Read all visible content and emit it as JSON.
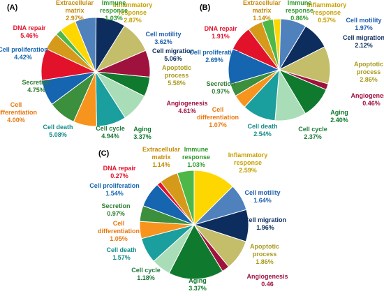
{
  "chart_data": [
    {
      "type": "pie",
      "panel_label": "(A)",
      "start_angle_deg": -40,
      "slices": [
        {
          "name": "Inflammatory response",
          "label_lines": [
            "Inflammatory",
            "response"
          ],
          "value": 2.87,
          "value_text": "2.87%",
          "color": "#FFD700",
          "label_color": "#C7A000"
        },
        {
          "name": "Cell motility",
          "label_lines": [
            "Cell motility"
          ],
          "value": 3.62,
          "value_text": "3.62%",
          "color": "#4F81BD",
          "label_color": "#1F5FAF"
        },
        {
          "name": "Cell migration",
          "label_lines": [
            "Cell migration"
          ],
          "value": 5.06,
          "value_text": "5.06%",
          "color": "#0D2D5E",
          "label_color": "#0D2D5E"
        },
        {
          "name": "Apoptotic process",
          "label_lines": [
            "Apoptotic",
            "process"
          ],
          "value": 5.58,
          "value_text": "5.58%",
          "color": "#C4BD6A",
          "label_color": "#A89A1E"
        },
        {
          "name": "Angiogenesis",
          "label_lines": [
            "Angiogenesis"
          ],
          "value": 4.61,
          "value_text": "4.61%",
          "color": "#A0123E",
          "label_color": "#A0123E"
        },
        {
          "name": "Aging",
          "label_lines": [
            "Aging"
          ],
          "value": 3.37,
          "value_text": "3.37%",
          "color": "#0F7A2E",
          "label_color": "#0F7A2E"
        },
        {
          "name": "Cell cycle",
          "label_lines": [
            "Cell cycle"
          ],
          "value": 4.94,
          "value_text": "4.94%",
          "color": "#A9DDB7",
          "label_color": "#1D7A3A"
        },
        {
          "name": "Cell death",
          "label_lines": [
            "Cell death"
          ],
          "value": 5.08,
          "value_text": "5.08%",
          "color": "#1A9E9E",
          "label_color": "#168A8A"
        },
        {
          "name": "Cell differentiation",
          "label_lines": [
            "Cell",
            "differentiation"
          ],
          "value": 4.0,
          "value_text": "4.00%",
          "color": "#F7941D",
          "label_color": "#E8780F"
        },
        {
          "name": "Secretion",
          "label_lines": [
            "Secretion"
          ],
          "value": 4.75,
          "value_text": "4.75%",
          "color": "#3C8F3C",
          "label_color": "#2E7D32"
        },
        {
          "name": "Cell proliferation",
          "label_lines": [
            "Cell proliferation"
          ],
          "value": 4.42,
          "value_text": "4.42%",
          "color": "#1565B0",
          "label_color": "#1565B0"
        },
        {
          "name": "DNA repair",
          "label_lines": [
            "DNA repair"
          ],
          "value": 5.46,
          "value_text": "5.46%",
          "color": "#E3122B",
          "label_color": "#E3122B"
        },
        {
          "name": "Extracellular matrix",
          "label_lines": [
            "Extracellular",
            "matrix"
          ],
          "value": 2.97,
          "value_text": "2.97%",
          "color": "#D69A1A",
          "label_color": "#C78A0A"
        },
        {
          "name": "Immune response",
          "label_lines": [
            "Immune",
            "response"
          ],
          "value": 1.03,
          "value_text": "1.03%",
          "color": "#4DB848",
          "label_color": "#2E9A2E"
        }
      ]
    },
    {
      "type": "pie",
      "panel_label": "(B)",
      "start_angle_deg": -7,
      "slices": [
        {
          "name": "Inflammatory response",
          "label_lines": [
            "Inflammatory",
            "response"
          ],
          "value": 0.57,
          "value_text": "0.57%",
          "color": "#FFD700",
          "label_color": "#C7A000"
        },
        {
          "name": "Cell motility",
          "label_lines": [
            "Cell motility"
          ],
          "value": 1.97,
          "value_text": "1.97%",
          "color": "#4F81BD",
          "label_color": "#1F5FAF"
        },
        {
          "name": "Cell migration",
          "label_lines": [
            "Cell migration"
          ],
          "value": 2.12,
          "value_text": "2.12%",
          "color": "#0D2D5E",
          "label_color": "#0D2D5E"
        },
        {
          "name": "Apoptotic process",
          "label_lines": [
            "Apoptotic",
            "process"
          ],
          "value": 2.86,
          "value_text": "2.86%",
          "color": "#C4BD6A",
          "label_color": "#A89A1E"
        },
        {
          "name": "Angiogenesis",
          "label_lines": [
            "Angiogenesis"
          ],
          "value": 0.46,
          "value_text": "0.46%",
          "color": "#A0123E",
          "label_color": "#A0123E"
        },
        {
          "name": "Aging",
          "label_lines": [
            "Aging"
          ],
          "value": 2.4,
          "value_text": "2.40%",
          "color": "#0F7A2E",
          "label_color": "#0F7A2E"
        },
        {
          "name": "Cell cycle",
          "label_lines": [
            "Cell cycle"
          ],
          "value": 2.37,
          "value_text": "2.37%",
          "color": "#A9DDB7",
          "label_color": "#1D7A3A"
        },
        {
          "name": "Cell death",
          "label_lines": [
            "Cell death"
          ],
          "value": 2.54,
          "value_text": "2.54%",
          "color": "#1A9E9E",
          "label_color": "#168A8A"
        },
        {
          "name": "Cell differentiation",
          "label_lines": [
            "Cell",
            "differentiation"
          ],
          "value": 1.07,
          "value_text": "1.07%",
          "color": "#F7941D",
          "label_color": "#E8780F"
        },
        {
          "name": "Secretion",
          "label_lines": [
            "Secretion"
          ],
          "value": 0.97,
          "value_text": "0.97%",
          "color": "#3C8F3C",
          "label_color": "#2E7D32"
        },
        {
          "name": "Cell proliferation",
          "label_lines": [
            "Cell proliferation"
          ],
          "value": 2.69,
          "value_text": "2.69%",
          "color": "#1565B0",
          "label_color": "#1565B0"
        },
        {
          "name": "DNA repair",
          "label_lines": [
            "DNA repair"
          ],
          "value": 1.91,
          "value_text": "1.91%",
          "color": "#E3122B",
          "label_color": "#E3122B"
        },
        {
          "name": "Extracellular matrix",
          "label_lines": [
            "Extracellular",
            "matrix"
          ],
          "value": 1.14,
          "value_text": "1.14%",
          "color": "#D69A1A",
          "label_color": "#C78A0A"
        },
        {
          "name": "Immune response",
          "label_lines": [
            "Immune",
            "response"
          ],
          "value": 0.86,
          "value_text": "0.86%",
          "color": "#4DB848",
          "label_color": "#2E9A2E"
        }
      ]
    },
    {
      "type": "pie",
      "panel_label": "(C)",
      "start_angle_deg": 0,
      "slices": [
        {
          "name": "Inflammatory response",
          "label_lines": [
            "Inflammatory",
            "response"
          ],
          "value": 2.59,
          "value_text": "2.59%",
          "color": "#FFD700",
          "label_color": "#C7A000"
        },
        {
          "name": "Cell motility",
          "label_lines": [
            "Cell motility"
          ],
          "value": 1.64,
          "value_text": "1.64%",
          "color": "#4F81BD",
          "label_color": "#1F5FAF"
        },
        {
          "name": "Cell migration",
          "label_lines": [
            "Cell migration"
          ],
          "value": 1.96,
          "value_text": "1.96%",
          "color": "#0D2D5E",
          "label_color": "#0D2D5E"
        },
        {
          "name": "Apoptotic process",
          "label_lines": [
            "Apoptotic",
            "process"
          ],
          "value": 1.86,
          "value_text": "1.86%",
          "color": "#C4BD6A",
          "label_color": "#A89A1E"
        },
        {
          "name": "Angiogenesis",
          "label_lines": [
            "Angiogenesis"
          ],
          "value": 0.46,
          "value_text": "0.46",
          "color": "#A0123E",
          "label_color": "#A0123E"
        },
        {
          "name": "Aging",
          "label_lines": [
            "Aging"
          ],
          "value": 3.37,
          "value_text": "3.37%",
          "color": "#0F7A2E",
          "label_color": "#0F7A2E"
        },
        {
          "name": "Cell cycle",
          "label_lines": [
            "Cell cycle"
          ],
          "value": 1.18,
          "value_text": "1.18%",
          "color": "#A9DDB7",
          "label_color": "#1D7A3A"
        },
        {
          "name": "Cell death",
          "label_lines": [
            "Cell death"
          ],
          "value": 1.57,
          "value_text": "1.57%",
          "color": "#1A9E9E",
          "label_color": "#168A8A"
        },
        {
          "name": "Cell differentiation",
          "label_lines": [
            "Cell",
            "differentiation"
          ],
          "value": 1.05,
          "value_text": "1.05%",
          "color": "#F7941D",
          "label_color": "#E8780F"
        },
        {
          "name": "Secretion",
          "label_lines": [
            "Secretion"
          ],
          "value": 0.97,
          "value_text": "0.97%",
          "color": "#3C8F3C",
          "label_color": "#2E7D32"
        },
        {
          "name": "Cell proliferation",
          "label_lines": [
            "Cell proliferation"
          ],
          "value": 1.54,
          "value_text": "1.54%",
          "color": "#1565B0",
          "label_color": "#1565B0"
        },
        {
          "name": "DNA repair",
          "label_lines": [
            "DNA repair"
          ],
          "value": 0.27,
          "value_text": "0.27%",
          "color": "#E3122B",
          "label_color": "#E3122B"
        },
        {
          "name": "Extracellular matrix",
          "label_lines": [
            "Extracellular",
            "matrix"
          ],
          "value": 1.14,
          "value_text": "1.14%",
          "color": "#D69A1A",
          "label_color": "#C78A0A"
        },
        {
          "name": "Immune response",
          "label_lines": [
            "Immune",
            "response"
          ],
          "value": 1.03,
          "value_text": "1.03%",
          "color": "#4DB848",
          "label_color": "#2E9A2E"
        }
      ]
    }
  ]
}
